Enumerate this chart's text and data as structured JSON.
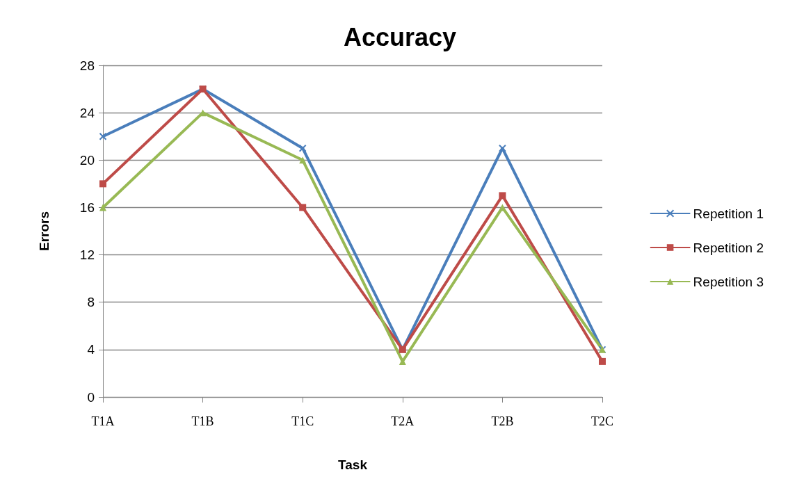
{
  "chart_data": {
    "type": "line",
    "title": "Accuracy",
    "xlabel": "Task",
    "ylabel": "Errors",
    "categories": [
      "T1A",
      "T1B",
      "T1C",
      "T2A",
      "T2B",
      "T2C"
    ],
    "series": [
      {
        "name": "Repetition 1",
        "color": "#4a7ebb",
        "marker": "cross",
        "values": [
          22,
          26,
          21,
          4,
          21,
          4
        ]
      },
      {
        "name": "Repetition 2",
        "color": "#be4b48",
        "marker": "square",
        "values": [
          18,
          26,
          16,
          4,
          17,
          3
        ]
      },
      {
        "name": "Repetition 3",
        "color": "#98b954",
        "marker": "triangle",
        "values": [
          16,
          24,
          20,
          3,
          16,
          4
        ]
      }
    ],
    "ylim": [
      0,
      28
    ],
    "yticks": [
      0,
      4,
      8,
      12,
      16,
      20,
      24,
      28
    ],
    "grid": "y",
    "legend": "right",
    "line_style": "solid"
  }
}
